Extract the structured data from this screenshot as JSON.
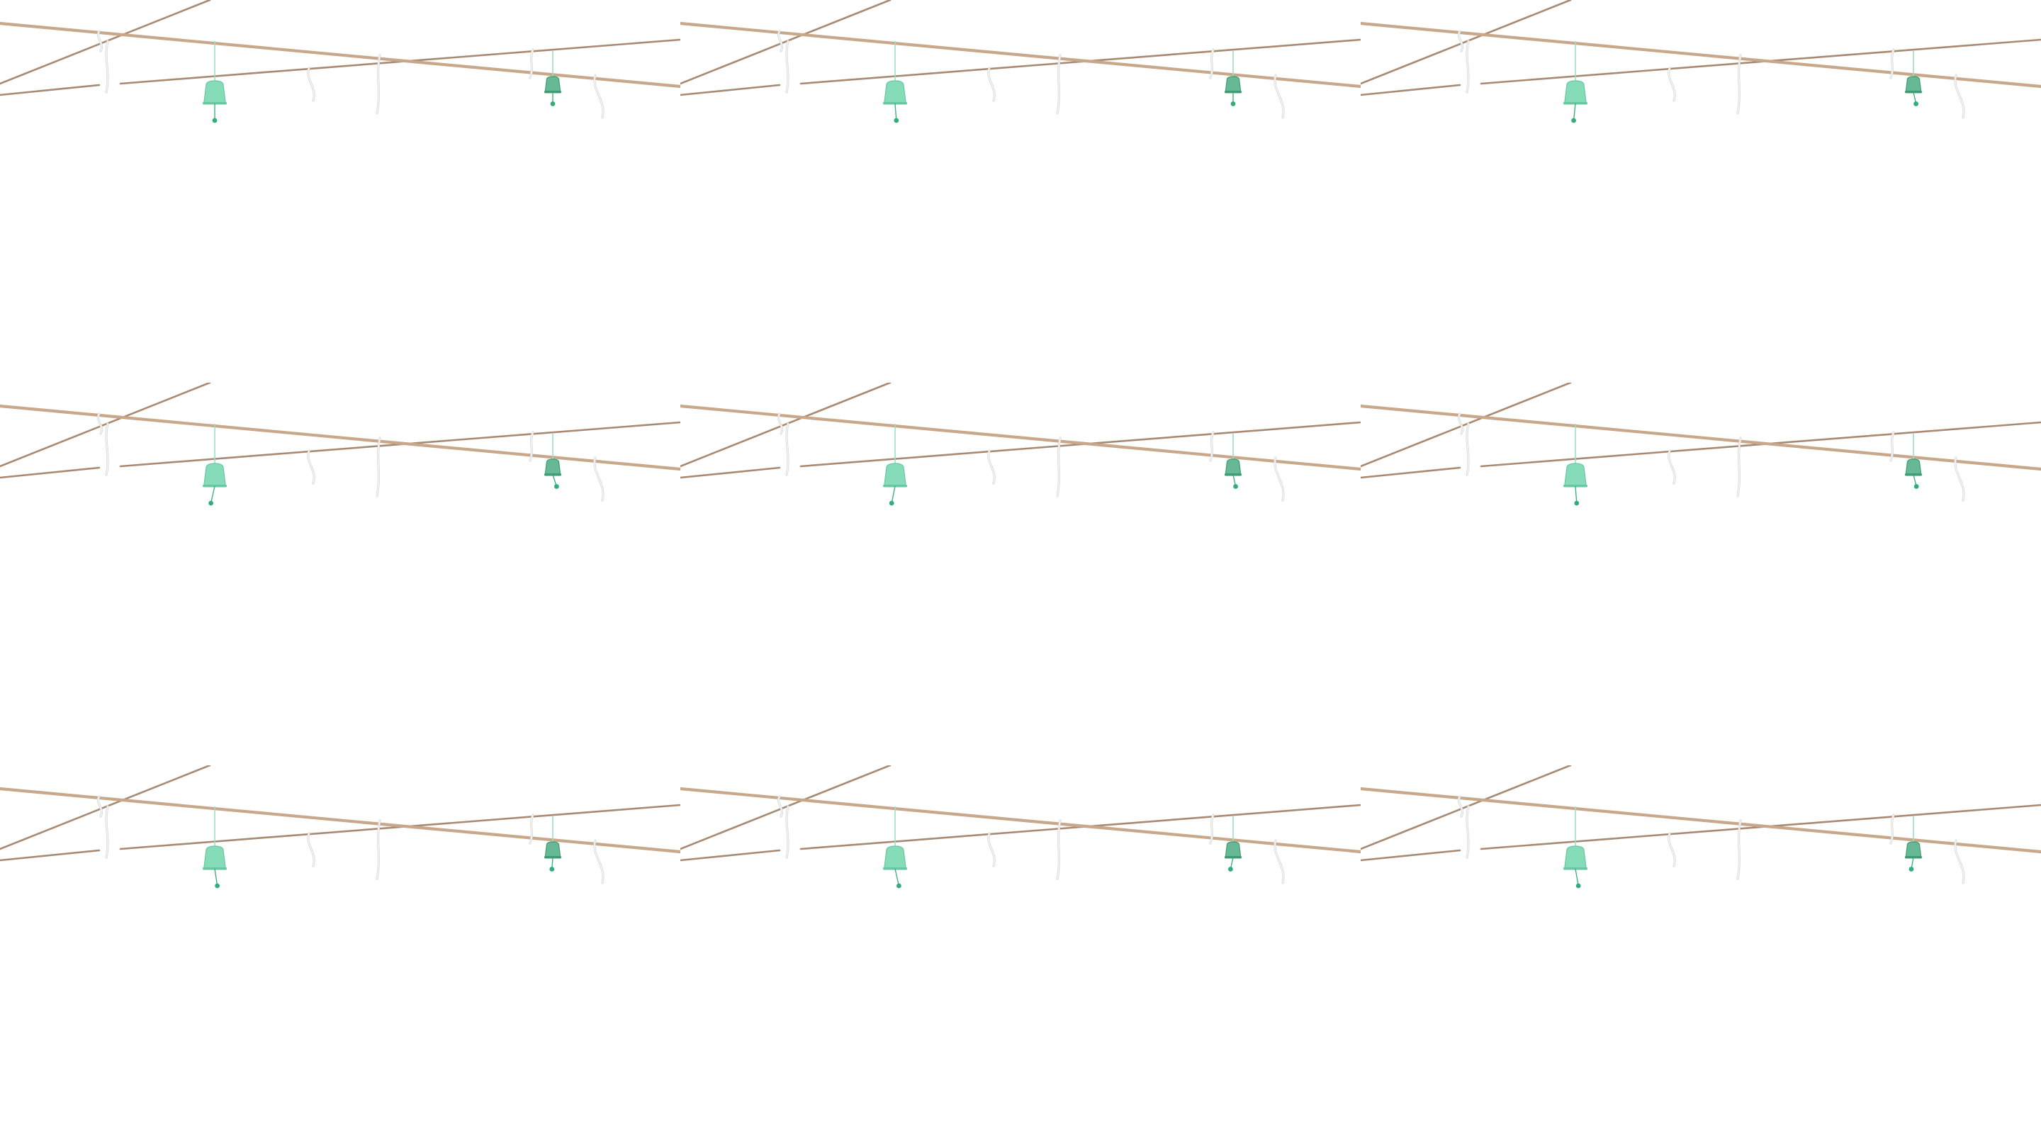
{
  "scene": {
    "rows": 3,
    "cols": 3,
    "background": "#ffffff",
    "rope_color": "#c9a78a",
    "rope_shadow_color": "#a88a72",
    "paper_color": "#f4f4f4",
    "paper_outline_color": "#d9d9d9",
    "chime_light_color": "#86dbb9",
    "chime_light_rim_color": "#66c9a2",
    "chime_dark_color": "#66b994",
    "chime_dark_rim_color": "#3f9c74",
    "string_color": "#9be0c4",
    "clapper_color": "#2fae7a",
    "icons": [
      "rope-line",
      "paper-streamer",
      "wind-chime-bell"
    ],
    "frames": [
      {
        "left_chime_swing": 0.0,
        "right_chime_swing": 0.0
      },
      {
        "left_chime_swing": 0.3,
        "right_chime_swing": 0.0
      },
      {
        "left_chime_swing": -0.4,
        "right_chime_swing": 0.6
      },
      {
        "left_chime_swing": -0.9,
        "right_chime_swing": 0.9
      },
      {
        "left_chime_swing": -0.8,
        "right_chime_swing": 0.6
      },
      {
        "left_chime_swing": 0.3,
        "right_chime_swing": 0.7
      },
      {
        "left_chime_swing": 0.6,
        "right_chime_swing": -0.2
      },
      {
        "left_chime_swing": 0.9,
        "right_chime_swing": -0.6
      },
      {
        "left_chime_swing": 0.7,
        "right_chime_swing": -0.5
      }
    ]
  }
}
